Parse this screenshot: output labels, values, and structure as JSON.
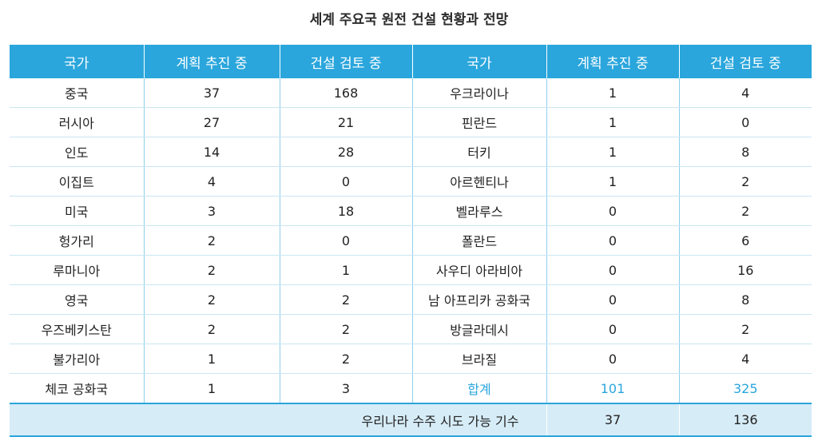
{
  "title": "세계 주요국 원전 건설 현황과 전망",
  "headers": [
    "국가",
    "계획 추진 중",
    "건설 검토 중",
    "국가",
    "계획 추진 중",
    "건설 검토 중"
  ],
  "rows": [
    [
      "중국",
      "37",
      "168",
      "우크라이나",
      "1",
      "4"
    ],
    [
      "러시아",
      "27",
      "21",
      "핀란드",
      "1",
      "0"
    ],
    [
      "인도",
      "14",
      "28",
      "터키",
      "1",
      "8"
    ],
    [
      "이집트",
      "4",
      "0",
      "아르헨티나",
      "1",
      "2"
    ],
    [
      "미국",
      "3",
      "18",
      "벨라루스",
      "0",
      "2"
    ],
    [
      "헝가리",
      "2",
      "0",
      "폴란드",
      "0",
      "6"
    ],
    [
      "루마니아",
      "2",
      "1",
      "사우디 아라비아",
      "0",
      "16"
    ],
    [
      "영국",
      "2",
      "2",
      "남 아프리카 공화국",
      "0",
      "8"
    ],
    [
      "우즈베키스탄",
      "2",
      "2",
      "방글라데시",
      "0",
      "2"
    ],
    [
      "불가리아",
      "1",
      "2",
      "브라질",
      "0",
      "4"
    ],
    [
      "체코 공화국",
      "1",
      "3",
      "합계",
      "101",
      "325"
    ]
  ],
  "summary": {
    "label": "우리나라 수주 시도 가능 기수",
    "planned": "37",
    "review": "136"
  },
  "colors": {
    "header_bg": "#2aa6dc",
    "summary_bg": "#d6ecf7",
    "highlight": "#2aa6dc"
  }
}
